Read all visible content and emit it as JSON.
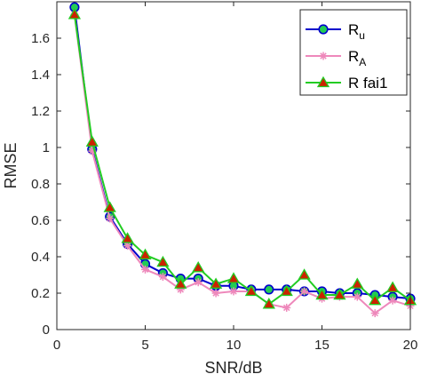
{
  "chart_data": {
    "type": "line",
    "xlabel": "SNR/dB",
    "ylabel": "RMSE",
    "xlim": [
      0,
      20
    ],
    "ylim": [
      0,
      1.8
    ],
    "xticks": [
      "0",
      "5",
      "10",
      "15",
      "20"
    ],
    "yticks": [
      "0",
      "0.2",
      "0.4",
      "0.6",
      "0.8",
      "1",
      "1.2",
      "1.4",
      "1.6"
    ],
    "grid": false,
    "legend_position": "top-right",
    "x": [
      1,
      2,
      3,
      4,
      5,
      6,
      7,
      8,
      9,
      10,
      11,
      12,
      13,
      14,
      15,
      16,
      17,
      18,
      19,
      20
    ],
    "series": [
      {
        "name": "R",
        "subscript": "u",
        "color": "#0000cc",
        "marker": "circle",
        "marker_fill": "#22cc55",
        "values": [
          1.77,
          0.99,
          0.62,
          0.47,
          0.36,
          0.31,
          0.28,
          0.28,
          0.24,
          0.24,
          0.22,
          0.22,
          0.22,
          0.21,
          0.21,
          0.2,
          0.2,
          0.19,
          0.18,
          0.17
        ]
      },
      {
        "name": "R",
        "subscript": "A",
        "color": "#ee88bb",
        "marker": "star",
        "marker_fill": "#ee88bb",
        "values": [
          1.73,
          0.98,
          0.61,
          0.46,
          0.33,
          0.29,
          0.22,
          0.26,
          0.2,
          0.21,
          0.21,
          0.14,
          0.12,
          0.21,
          0.17,
          0.18,
          0.18,
          0.09,
          0.16,
          0.13
        ]
      },
      {
        "name": "R fai1",
        "subscript": "",
        "color": "#22cc22",
        "marker": "triangle",
        "marker_fill": "#cc2200",
        "values": [
          1.73,
          1.03,
          0.67,
          0.5,
          0.41,
          0.37,
          0.25,
          0.34,
          0.25,
          0.28,
          0.21,
          0.14,
          0.21,
          0.3,
          0.19,
          0.19,
          0.25,
          0.16,
          0.23,
          0.16
        ]
      }
    ]
  }
}
